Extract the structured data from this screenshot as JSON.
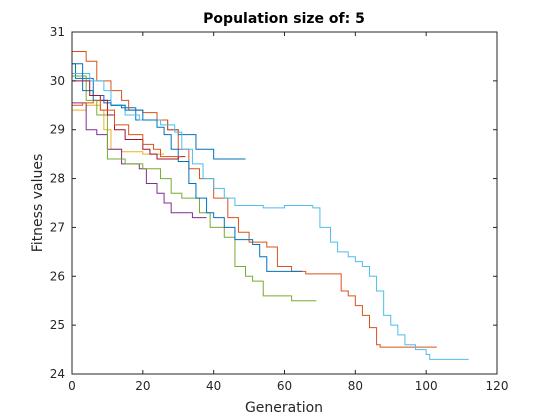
{
  "chart_data": {
    "type": "line",
    "title": "Population size of: 5",
    "xlabel": "Generation",
    "ylabel": "Fitness values",
    "xlim": [
      0,
      120
    ],
    "ylim": [
      24,
      31
    ],
    "xticks": [
      0,
      20,
      40,
      60,
      80,
      100,
      120
    ],
    "yticks": [
      24,
      25,
      26,
      27,
      28,
      29,
      30,
      31
    ],
    "grid": false,
    "step": true,
    "series": [
      {
        "color": "#0072BD",
        "points": [
          [
            0,
            30.35
          ],
          [
            1,
            30.05
          ],
          [
            5,
            30.05
          ],
          [
            6,
            29.6
          ],
          [
            10,
            29.6
          ],
          [
            11,
            29.5
          ],
          [
            14,
            29.45
          ],
          [
            18,
            29.2
          ],
          [
            25,
            29.2
          ],
          [
            27,
            29.0
          ],
          [
            30,
            28.9
          ],
          [
            35,
            28.6
          ],
          [
            40,
            28.4
          ],
          [
            49,
            28.4
          ]
        ]
      },
      {
        "color": "#D95319",
        "points": [
          [
            0,
            30.6
          ],
          [
            3,
            30.6
          ],
          [
            4,
            30.4
          ],
          [
            7,
            30.0
          ],
          [
            11,
            29.8
          ],
          [
            14,
            29.6
          ],
          [
            16,
            29.4
          ],
          [
            20,
            29.35
          ],
          [
            24,
            29.2
          ],
          [
            27,
            29.0
          ],
          [
            30,
            28.6
          ],
          [
            33,
            28.2
          ],
          [
            36,
            28.0
          ],
          [
            40,
            27.6
          ],
          [
            44,
            27.2
          ],
          [
            47,
            26.9
          ],
          [
            50,
            26.7
          ],
          [
            55,
            26.6
          ],
          [
            58,
            26.2
          ],
          [
            62,
            26.1
          ],
          [
            66,
            26.05
          ],
          [
            74,
            26.05
          ],
          [
            76,
            25.7
          ],
          [
            78,
            25.6
          ],
          [
            80,
            25.4
          ],
          [
            82,
            25.2
          ],
          [
            84,
            24.95
          ],
          [
            86,
            24.6
          ],
          [
            87,
            24.55
          ],
          [
            103,
            24.55
          ]
        ]
      },
      {
        "color": "#EDB120",
        "points": [
          [
            0,
            29.4
          ],
          [
            3,
            29.4
          ],
          [
            4,
            29.5
          ],
          [
            8,
            29.4
          ],
          [
            9,
            29.0
          ],
          [
            11,
            28.6
          ],
          [
            14,
            28.55
          ],
          [
            19,
            28.55
          ],
          [
            20,
            28.5
          ],
          [
            26,
            28.5
          ]
        ]
      },
      {
        "color": "#7E2F8E",
        "points": [
          [
            0,
            29.55
          ],
          [
            3,
            29.55
          ],
          [
            4,
            29.0
          ],
          [
            7,
            28.9
          ],
          [
            10,
            28.6
          ],
          [
            14,
            28.3
          ],
          [
            18,
            28.3
          ],
          [
            19,
            28.2
          ],
          [
            21,
            27.9
          ],
          [
            24,
            27.7
          ],
          [
            26,
            27.5
          ],
          [
            28,
            27.3
          ],
          [
            34,
            27.2
          ],
          [
            38,
            27.2
          ]
        ]
      },
      {
        "color": "#77AC30",
        "points": [
          [
            0,
            30.1
          ],
          [
            3,
            30.1
          ],
          [
            4,
            29.6
          ],
          [
            7,
            29.3
          ],
          [
            10,
            28.4
          ],
          [
            13,
            28.4
          ],
          [
            15,
            28.3
          ],
          [
            20,
            28.2
          ],
          [
            23,
            28.2
          ],
          [
            25,
            28.0
          ],
          [
            28,
            27.7
          ],
          [
            31,
            27.6
          ],
          [
            36,
            27.3
          ],
          [
            39,
            27.0
          ],
          [
            43,
            26.8
          ],
          [
            46,
            26.2
          ],
          [
            49,
            26.0
          ],
          [
            51,
            25.9
          ],
          [
            54,
            25.6
          ],
          [
            60,
            25.6
          ],
          [
            62,
            25.5
          ],
          [
            69,
            25.5
          ]
        ]
      },
      {
        "color": "#4DBEEE",
        "points": [
          [
            0,
            30.15
          ],
          [
            4,
            30.15
          ],
          [
            5,
            30.0
          ],
          [
            9,
            29.8
          ],
          [
            11,
            29.5
          ],
          [
            15,
            29.3
          ],
          [
            19,
            29.2
          ],
          [
            25,
            29.1
          ],
          [
            29,
            28.95
          ],
          [
            31,
            28.6
          ],
          [
            34,
            28.3
          ],
          [
            37,
            28.0
          ],
          [
            40,
            27.8
          ],
          [
            43,
            27.6
          ],
          [
            46,
            27.45
          ],
          [
            54,
            27.4
          ],
          [
            60,
            27.45
          ],
          [
            68,
            27.4
          ],
          [
            70,
            27.0
          ],
          [
            73,
            26.7
          ],
          [
            75,
            26.5
          ],
          [
            78,
            26.4
          ],
          [
            80,
            26.3
          ],
          [
            82,
            26.2
          ],
          [
            84,
            26.0
          ],
          [
            86,
            25.7
          ],
          [
            88,
            25.2
          ],
          [
            90,
            25.0
          ],
          [
            92,
            24.8
          ],
          [
            94,
            24.6
          ],
          [
            97,
            24.5
          ],
          [
            100,
            24.4
          ],
          [
            101,
            24.3
          ],
          [
            112,
            24.3
          ]
        ]
      },
      {
        "color": "#0072BD",
        "points": [
          [
            0,
            30.35
          ],
          [
            2,
            30.35
          ],
          [
            3,
            29.8
          ],
          [
            6,
            29.7
          ],
          [
            9,
            29.55
          ],
          [
            11,
            29.5
          ],
          [
            15,
            29.4
          ],
          [
            20,
            29.2
          ],
          [
            24,
            29.05
          ],
          [
            26,
            28.9
          ],
          [
            28,
            28.6
          ],
          [
            30,
            28.35
          ],
          [
            33,
            27.9
          ],
          [
            35,
            27.6
          ],
          [
            38,
            27.3
          ],
          [
            40,
            27.2
          ],
          [
            43,
            27.0
          ],
          [
            46,
            26.75
          ],
          [
            51,
            26.65
          ],
          [
            53,
            26.4
          ],
          [
            55,
            26.1
          ],
          [
            61,
            26.1
          ],
          [
            65,
            26.1
          ]
        ]
      },
      {
        "color": "#A2142F",
        "points": [
          [
            0,
            30.0
          ],
          [
            4,
            30.0
          ],
          [
            5,
            29.7
          ],
          [
            8,
            29.6
          ],
          [
            10,
            29.3
          ],
          [
            12,
            29.0
          ],
          [
            15,
            28.8
          ],
          [
            20,
            28.6
          ],
          [
            22,
            28.5
          ],
          [
            24,
            28.4
          ],
          [
            28,
            28.4
          ],
          [
            30,
            28.45
          ],
          [
            32,
            28.45
          ]
        ]
      },
      {
        "color": "#D95319",
        "points": [
          [
            0,
            29.5
          ],
          [
            2,
            29.5
          ],
          [
            3,
            29.55
          ],
          [
            6,
            29.6
          ],
          [
            8,
            29.4
          ],
          [
            12,
            29.1
          ],
          [
            16,
            28.9
          ],
          [
            20,
            28.7
          ],
          [
            23,
            28.6
          ],
          [
            25,
            28.45
          ],
          [
            31,
            28.45
          ]
        ]
      }
    ]
  }
}
